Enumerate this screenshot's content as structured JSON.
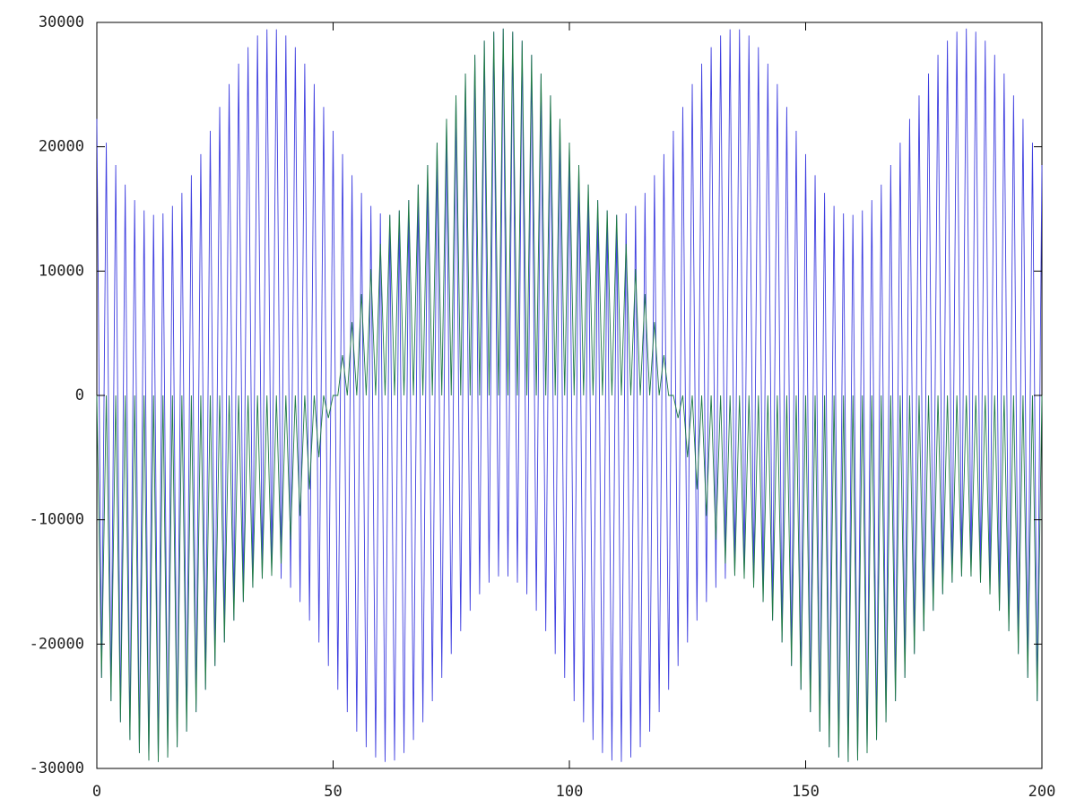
{
  "chart_data": {
    "type": "line",
    "x": [
      0,
      1,
      2,
      3,
      4,
      5,
      6,
      7,
      8,
      9,
      10,
      11,
      12,
      13,
      14,
      15,
      16,
      17,
      18,
      19,
      20,
      21,
      22,
      23,
      24,
      25,
      26,
      27,
      28,
      29,
      30,
      31,
      32,
      33,
      34,
      35,
      36,
      37,
      38,
      39,
      40,
      41,
      42,
      43,
      44,
      45,
      46,
      47,
      48,
      49,
      50,
      51,
      52,
      53,
      54,
      55,
      56,
      57,
      58,
      59,
      60,
      61,
      62,
      63,
      64,
      65,
      66,
      67,
      68,
      69,
      70,
      71,
      72,
      73,
      74,
      75,
      76,
      77,
      78,
      79,
      80,
      81,
      82,
      83,
      84,
      85,
      86,
      87,
      88,
      89,
      90,
      91,
      92,
      93,
      94,
      95,
      96,
      97,
      98,
      99,
      100,
      101,
      102,
      103,
      104,
      105,
      106,
      107,
      108,
      109,
      110,
      111,
      112,
      113,
      114,
      115,
      116,
      117,
      118,
      119,
      120,
      121,
      122,
      123,
      124,
      125,
      126,
      127,
      128,
      129,
      130,
      131,
      132,
      133,
      134,
      135,
      136,
      137,
      138,
      139,
      140,
      141,
      142,
      143,
      144,
      145,
      146,
      147,
      148,
      149,
      150,
      151,
      152,
      153,
      154,
      155,
      156,
      157,
      158,
      159,
      160,
      161,
      162,
      163,
      164,
      165,
      166,
      167,
      168,
      169,
      170,
      171,
      172,
      173,
      174,
      175,
      176,
      177,
      178,
      179,
      180,
      181,
      182,
      183,
      184,
      185,
      186,
      187,
      188,
      189,
      190,
      191,
      192,
      193,
      194,
      195,
      196,
      197,
      198,
      199,
      200
    ],
    "series": [
      {
        "color": "#3f3fe0",
        "values": [
          22240,
          -22720,
          20330,
          -24590,
          18530,
          -26290,
          16960,
          -27710,
          15710,
          -28760,
          14880,
          -29360,
          14520,
          -29480,
          14640,
          -29120,
          15240,
          -28290,
          16290,
          -27040,
          17710,
          -25470,
          19410,
          -23670,
          21280,
          -21760,
          23200,
          -19870,
          25040,
          -18110,
          26680,
          -16610,
          28010,
          -15470,
          28950,
          -14750,
          29440,
          -14500,
          29440,
          -14750,
          28950,
          -15470,
          28010,
          -16610,
          26680,
          -18110,
          25040,
          -19870,
          23200,
          -21760,
          21280,
          -23670,
          19410,
          -25470,
          17710,
          -27040,
          16290,
          -28290,
          15240,
          -29120,
          14640,
          -29480,
          14520,
          -29360,
          14880,
          -28760,
          15710,
          -27710,
          16960,
          -26290,
          18530,
          -24590,
          20330,
          -22720,
          22240,
          -20800,
          24130,
          -18960,
          25890,
          -17320,
          27390,
          -15990,
          28530,
          -15050,
          29250,
          -14560,
          29500,
          -14560,
          29250,
          -15050,
          28530,
          -15990,
          27390,
          -17320,
          25890,
          -18960,
          24130,
          -20800,
          22240,
          -22720,
          20330,
          -24590,
          18530,
          -26290,
          16960,
          -27710,
          15710,
          -28760,
          14880,
          -29360,
          14520,
          -29480,
          14640,
          -29120,
          15240,
          -28290,
          16290,
          -27040,
          17710,
          -25470,
          19410,
          -23670,
          21280,
          -21760,
          23200,
          -19870,
          25040,
          -18110,
          26680,
          -16610,
          28010,
          -15470,
          28950,
          -14750,
          29440,
          -14500,
          29440,
          -14750,
          28950,
          -15470,
          28010,
          -16610,
          26680,
          -18110,
          25040,
          -19870,
          23200,
          -21760,
          21280,
          -23670,
          19410,
          -25470,
          17710,
          -27040,
          16290,
          -28290,
          15240,
          -29120,
          14640,
          -29480,
          14520,
          -29360,
          14880,
          -28760,
          15710,
          -27710,
          16960,
          -26290,
          18530,
          -24590,
          20330,
          -22720,
          22240,
          -20800,
          24130,
          -18960,
          25890,
          -17320,
          27390,
          -15990,
          28530,
          -15050,
          29250,
          -14560,
          29500,
          -14560,
          29250,
          -15050,
          28530,
          -15990,
          27390,
          -17320,
          25890,
          -18960,
          24130,
          -20800,
          22240,
          -22720,
          20330,
          -24590,
          18530
        ]
      },
      {
        "color": "#1f7a45",
        "values": [
          0,
          -22720,
          0,
          -24590,
          0,
          -26290,
          0,
          -27710,
          0,
          -28760,
          0,
          -29360,
          0,
          -29480,
          0,
          -29120,
          0,
          -28290,
          0,
          -27040,
          0,
          -25470,
          0,
          -23670,
          0,
          -21760,
          0,
          -19870,
          0,
          -18110,
          0,
          -16610,
          0,
          -15470,
          0,
          -14750,
          0,
          -14500,
          0,
          -13520,
          0,
          -11600,
          0,
          -9690,
          0,
          -7550,
          0,
          -4970,
          0,
          -1810,
          0,
          0,
          3240,
          0,
          5900,
          0,
          8150,
          0,
          10160,
          0,
          12200,
          0,
          14520,
          0,
          14880,
          0,
          15710,
          0,
          16960,
          0,
          18530,
          0,
          20330,
          0,
          22240,
          0,
          24130,
          0,
          25890,
          0,
          27390,
          0,
          28530,
          0,
          29250,
          0,
          29500,
          0,
          29250,
          0,
          28530,
          0,
          27390,
          0,
          25890,
          0,
          24130,
          0,
          22240,
          0,
          20330,
          0,
          18530,
          0,
          16960,
          0,
          15710,
          0,
          14880,
          0,
          14520,
          0,
          12200,
          0,
          10160,
          0,
          8150,
          0,
          5900,
          0,
          3240,
          0,
          0,
          -1810,
          0,
          -4970,
          0,
          -7550,
          0,
          -9690,
          0,
          -11600,
          0,
          -13520,
          0,
          -14500,
          0,
          -14750,
          0,
          -15470,
          0,
          -16610,
          0,
          -18110,
          0,
          -19870,
          0,
          -21760,
          0,
          -23670,
          0,
          -25470,
          0,
          -27040,
          0,
          -28290,
          0,
          -29120,
          0,
          -29480,
          0,
          -29360,
          0,
          -28760,
          0,
          -27710,
          0,
          -26290,
          0,
          -24590,
          0,
          -22720,
          0,
          -20800,
          0,
          -18960,
          0,
          -17320,
          0,
          -15990,
          0,
          -15050,
          0,
          -14560,
          0,
          -14560,
          0,
          -15050,
          0,
          -15990,
          0,
          -17320,
          0,
          -18960,
          0,
          -20800,
          0,
          -22720,
          0,
          -24590,
          0
        ]
      }
    ],
    "xlim": [
      0,
      200
    ],
    "xticks": [
      0,
      50,
      100,
      150,
      200
    ],
    "ylim": [
      -30000,
      30000
    ],
    "yticks": [
      -30000,
      -20000,
      -10000,
      0,
      10000,
      20000,
      30000
    ],
    "grid": false
  }
}
